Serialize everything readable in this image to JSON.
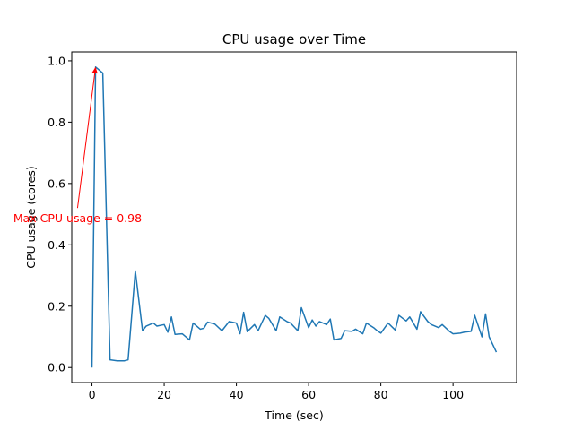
{
  "chart_data": {
    "type": "line",
    "title": "CPU usage over Time",
    "xlabel": "Time (sec)",
    "ylabel": "CPU usage (cores)",
    "xlim": [
      -5.6,
      117.6
    ],
    "ylim": [
      -0.049,
      1.029
    ],
    "xticks": [
      0,
      20,
      40,
      60,
      80,
      100
    ],
    "yticks": [
      0.0,
      0.2,
      0.4,
      0.6,
      0.8,
      1.0
    ],
    "xtick_labels": [
      "0",
      "20",
      "40",
      "60",
      "80",
      "100"
    ],
    "ytick_labels": [
      "0.0",
      "0.2",
      "0.4",
      "0.6",
      "0.8",
      "1.0"
    ],
    "grid": false,
    "series": [
      {
        "color": "#1f77b4",
        "x": [
          0,
          1,
          3,
          5,
          7,
          9,
          10,
          12,
          14,
          15,
          17,
          18,
          20,
          21,
          22,
          23,
          25,
          27,
          28,
          30,
          31,
          32,
          34,
          36,
          38,
          40,
          41,
          42,
          43,
          45,
          46,
          48,
          49,
          51,
          52,
          54,
          55,
          57,
          58,
          60,
          61,
          62,
          63,
          65,
          66,
          67,
          69,
          70,
          72,
          73,
          75,
          76,
          78,
          79,
          80,
          82,
          84,
          85,
          87,
          88,
          90,
          91,
          93,
          94,
          96,
          97,
          99,
          100,
          102,
          103,
          105,
          106,
          108,
          109,
          110,
          112
        ],
        "y": [
          0.0,
          0.98,
          0.96,
          0.025,
          0.022,
          0.022,
          0.025,
          0.315,
          0.12,
          0.135,
          0.145,
          0.135,
          0.14,
          0.115,
          0.165,
          0.108,
          0.11,
          0.09,
          0.145,
          0.125,
          0.128,
          0.148,
          0.142,
          0.12,
          0.15,
          0.145,
          0.11,
          0.18,
          0.117,
          0.14,
          0.12,
          0.17,
          0.16,
          0.12,
          0.165,
          0.15,
          0.145,
          0.12,
          0.195,
          0.13,
          0.155,
          0.135,
          0.15,
          0.14,
          0.158,
          0.09,
          0.095,
          0.12,
          0.118,
          0.125,
          0.11,
          0.145,
          0.13,
          0.12,
          0.112,
          0.145,
          0.122,
          0.17,
          0.152,
          0.165,
          0.125,
          0.182,
          0.15,
          0.14,
          0.13,
          0.14,
          0.118,
          0.11,
          0.112,
          0.115,
          0.118,
          0.17,
          0.1,
          0.175,
          0.1,
          0.05
        ]
      }
    ],
    "annotation": {
      "text": "Max CPU usage = 0.98",
      "xy": [
        1,
        0.98
      ],
      "xytext": [
        -4,
        0.52
      ],
      "color": "#ff0000"
    }
  }
}
